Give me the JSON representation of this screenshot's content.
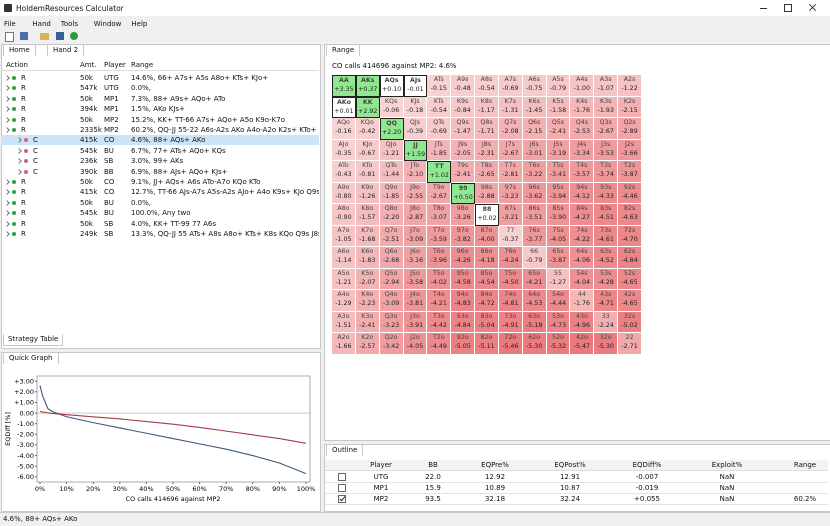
{
  "window": {
    "title": "HoldemResources Calculator"
  },
  "menu": [
    "File",
    "Hand",
    "Tools",
    "Window",
    "Help"
  ],
  "hand_panel": {
    "tabs": [
      "Home",
      "Hand 2"
    ],
    "columns": [
      "Action",
      "Amt.",
      "Player",
      "Range"
    ],
    "rows": [
      {
        "cells": [
          "R",
          "50k",
          "UTG",
          "14.6%, 66+ A7s+ A5s A8o+ KTs+ KJo+"
        ]
      },
      {
        "cells": [
          "R",
          "547k",
          "UTG",
          "0.0%,"
        ]
      },
      {
        "cells": [
          "R",
          "50k",
          "MP1",
          "7.3%, 88+ A9s+ AQo+ ATo"
        ]
      },
      {
        "cells": [
          "R",
          "394k",
          "MP1",
          "1.5%, AKo KJs+"
        ]
      },
      {
        "cells": [
          "R",
          "50k",
          "MP2",
          "15.2%, KK+ TT-66 A7s+ AQo+ A5o K9o-K7o"
        ]
      },
      {
        "cells": [
          "R",
          "2335k",
          "MP2",
          "60.2%, QQ-JJ 55-22 A6s-A2s AKo A4o-A2o K2s+ KTo+ K6o-K2o"
        ]
      },
      {
        "cells": [
          "C",
          "415k",
          "CO",
          "4.6%, 88+ AQs+ AKo"
        ],
        "child": true,
        "selected": true
      },
      {
        "cells": [
          "C",
          "545k",
          "BU",
          "6.7%, 77+ ATs+ AQo+ KQs"
        ],
        "child": true
      },
      {
        "cells": [
          "C",
          "236k",
          "SB",
          "3.0%, 99+ AKs"
        ],
        "child": true
      },
      {
        "cells": [
          "C",
          "390k",
          "BB",
          "6.9%, 88+ AJs+ AQo+ KJs+"
        ],
        "child": true
      },
      {
        "cells": [
          "R",
          "50k",
          "CO",
          "9.1%, JJ+ AQs+ A6s ATo-A7o KQo KTo"
        ]
      },
      {
        "cells": [
          "R",
          "415k",
          "CO",
          "12.7%, TT-66 AJs-A7s A5s-A2s AJo+ A4o K9s+ KJo Q9s+ QJo J9s"
        ]
      },
      {
        "cells": [
          "R",
          "50k",
          "BU",
          "0.0%,"
        ]
      },
      {
        "cells": [
          "R",
          "545k",
          "BU",
          "100.0%, Any two"
        ]
      },
      {
        "cells": [
          "R",
          "50k",
          "SB",
          "4.0%, KK+ TT-99 77 A6s"
        ]
      },
      {
        "cells": [
          "R",
          "249k",
          "SB",
          "13.3%, QQ-JJ 55 ATs+ A8s A8o+ KTs+ K8s KQo Q9s J8s J7s J9s T7s"
        ]
      }
    ],
    "bottom_tab": "Strategy Table"
  },
  "quick_graph": {
    "tab": "Quick Graph",
    "chart": {
      "type": "line",
      "xlabel": "CO calls 414696 against MP2",
      "ylabel": "EQDiff [%]",
      "x": [
        0,
        1,
        3,
        5,
        10,
        20,
        30,
        40,
        50,
        60,
        70,
        80,
        90,
        100
      ],
      "series": [
        {
          "color": "#3b5a7a",
          "values": [
            2.6,
            1.6,
            0.4,
            0.1,
            -0.35,
            -0.9,
            -1.4,
            -1.9,
            -2.4,
            -2.9,
            -3.4,
            -4.0,
            -4.7,
            -5.7
          ]
        },
        {
          "color": "#a83a45",
          "values": [
            0.15,
            0.1,
            0.02,
            -0.05,
            -0.15,
            -0.35,
            -0.55,
            -0.8,
            -1.05,
            -1.35,
            -1.7,
            -2.05,
            -2.4,
            -2.85
          ]
        }
      ],
      "xlim": [
        0,
        100
      ],
      "ylim": [
        -6.3,
        3.3
      ],
      "xticks": [
        {
          "value": 0,
          "label": "0%"
        },
        {
          "value": 10,
          "label": "10%"
        },
        {
          "value": 20,
          "label": "20%"
        },
        {
          "value": 30,
          "label": "30%"
        },
        {
          "value": 40,
          "label": "40%"
        },
        {
          "value": 50,
          "label": "50%"
        },
        {
          "value": 60,
          "label": "60%"
        },
        {
          "value": 70,
          "label": "70%"
        },
        {
          "value": 80,
          "label": "80%"
        },
        {
          "value": 90,
          "label": "90%"
        },
        {
          "value": 100,
          "label": "100%"
        }
      ],
      "yticks": [
        {
          "value": 3,
          "label": "+3.00"
        },
        {
          "value": 2,
          "label": "+2.00"
        },
        {
          "value": 1,
          "label": "+1.00"
        },
        {
          "value": 0,
          "label": "0.00"
        },
        {
          "value": -1,
          "label": "-1.00"
        },
        {
          "value": -2,
          "label": "-2.00"
        },
        {
          "value": -3,
          "label": "-3.00"
        },
        {
          "value": -4,
          "label": "-4.00"
        },
        {
          "value": -5,
          "label": "-5.00"
        },
        {
          "value": -6,
          "label": "-6.00"
        }
      ]
    }
  },
  "range_panel": {
    "tab": "Range",
    "subtitle": "CO calls 414696 against MP2: 4.6%",
    "grid": [
      [
        [
          "AA",
          "+3.35"
        ],
        [
          "AKs",
          "+0.37"
        ],
        [
          "AQs",
          "+0.10"
        ],
        [
          "AJs",
          "-0.01"
        ],
        [
          "ATs",
          "-0.15"
        ],
        [
          "A9s",
          "-0.48"
        ],
        [
          "A8s",
          "-0.54"
        ],
        [
          "A7s",
          "-0.69"
        ],
        [
          "A6s",
          "-0.75"
        ],
        [
          "A5s",
          "-0.79"
        ],
        [
          "A4s",
          "-1.00"
        ],
        [
          "A3s",
          "-1.07"
        ],
        [
          "A2s",
          "-1.22"
        ]
      ],
      [
        [
          "AKo",
          "+0.01"
        ],
        [
          "KK",
          "+2.92"
        ],
        [
          "KQs",
          "-0.06"
        ],
        [
          "KJs",
          "-0.18"
        ],
        [
          "KTs",
          "-0.54"
        ],
        [
          "K9s",
          "-0.84"
        ],
        [
          "K8s",
          "-1.17"
        ],
        [
          "K7s",
          "-1.31"
        ],
        [
          "K6s",
          "-1.45"
        ],
        [
          "K5s",
          "-1.58"
        ],
        [
          "K4s",
          "-1.76"
        ],
        [
          "K3s",
          "-1.93"
        ],
        [
          "K2s",
          "-2.15"
        ]
      ],
      [
        [
          "AQo",
          "-0.16"
        ],
        [
          "KQo",
          "-0.42"
        ],
        [
          "QQ",
          "+2.20"
        ],
        [
          "QJs",
          "-0.39"
        ],
        [
          "QTs",
          "-0.69"
        ],
        [
          "Q9s",
          "-1.47"
        ],
        [
          "Q8s",
          "-1.71"
        ],
        [
          "Q7s",
          "-2.08"
        ],
        [
          "Q6s",
          "-2.15"
        ],
        [
          "Q5s",
          "-2.41"
        ],
        [
          "Q4s",
          "-2.53"
        ],
        [
          "Q3s",
          "-2.67"
        ],
        [
          "Q2s",
          "-2.89"
        ]
      ],
      [
        [
          "AJo",
          "-0.35"
        ],
        [
          "KJo",
          "-0.67"
        ],
        [
          "QJo",
          "-1.21"
        ],
        [
          "JJ",
          "+1.59"
        ],
        [
          "JTs",
          "-1.85"
        ],
        [
          "J9s",
          "-2.05"
        ],
        [
          "J8s",
          "-2.31"
        ],
        [
          "J7s",
          "-2.67"
        ],
        [
          "J6s",
          "-3.01"
        ],
        [
          "J5s",
          "-3.19"
        ],
        [
          "J4s",
          "-3.34"
        ],
        [
          "J3s",
          "-3.53"
        ],
        [
          "J2s",
          "-3.66"
        ]
      ],
      [
        [
          "ATo",
          "-0.43"
        ],
        [
          "KTo",
          "-0.81"
        ],
        [
          "QTo",
          "-1.44"
        ],
        [
          "JTo",
          "-2.10"
        ],
        [
          "TT",
          "+1.02"
        ],
        [
          "T9s",
          "-2.41"
        ],
        [
          "T8s",
          "-2.65"
        ],
        [
          "T7s",
          "-2.81"
        ],
        [
          "T6s",
          "-3.22"
        ],
        [
          "T5s",
          "-3.41"
        ],
        [
          "T4s",
          "-3.57"
        ],
        [
          "T3s",
          "-3.74"
        ],
        [
          "T2s",
          "-3.87"
        ]
      ],
      [
        [
          "A9o",
          "-0.80"
        ],
        [
          "K9o",
          "-1.26"
        ],
        [
          "Q9o",
          "-1.85"
        ],
        [
          "J9o",
          "-2.55"
        ],
        [
          "T9o",
          "-2.67"
        ],
        [
          "99",
          "+0.50"
        ],
        [
          "98s",
          "-2.88"
        ],
        [
          "97s",
          "-3.23"
        ],
        [
          "96s",
          "-3.62"
        ],
        [
          "95s",
          "-3.94"
        ],
        [
          "94s",
          "-4.12"
        ],
        [
          "93s",
          "-4.33"
        ],
        [
          "92s",
          "-4.46"
        ]
      ],
      [
        [
          "A8o",
          "-0.90"
        ],
        [
          "K8o",
          "-1.57"
        ],
        [
          "Q8o",
          "-2.20"
        ],
        [
          "J8o",
          "-2.87"
        ],
        [
          "T8o",
          "-3.07"
        ],
        [
          "98o",
          "-3.26"
        ],
        [
          "88",
          "+0.02"
        ],
        [
          "87s",
          "-3.21"
        ],
        [
          "86s",
          "-3.51"
        ],
        [
          "85s",
          "-3.90"
        ],
        [
          "84s",
          "-4.27"
        ],
        [
          "83s",
          "-4.51"
        ],
        [
          "82s",
          "-4.63"
        ]
      ],
      [
        [
          "A7o",
          "-1.05"
        ],
        [
          "K7o",
          "-1.68"
        ],
        [
          "Q7o",
          "-2.51"
        ],
        [
          "J7o",
          "-3.09"
        ],
        [
          "T7o",
          "-3.59"
        ],
        [
          "97o",
          "-3.82"
        ],
        [
          "87o",
          "-4.00"
        ],
        [
          "77",
          "-0.37"
        ],
        [
          "76s",
          "-3.77"
        ],
        [
          "75s",
          "-4.05"
        ],
        [
          "74s",
          "-4.22"
        ],
        [
          "73s",
          "-4.61"
        ],
        [
          "72s",
          "-4.70"
        ]
      ],
      [
        [
          "A6o",
          "-1.14"
        ],
        [
          "K6o",
          "-1.83"
        ],
        [
          "Q6o",
          "-2.68"
        ],
        [
          "J6o",
          "-3.16"
        ],
        [
          "T6o",
          "-3.96"
        ],
        [
          "96o",
          "-4.26"
        ],
        [
          "86o",
          "-4.18"
        ],
        [
          "76o",
          "-4.24"
        ],
        [
          "66",
          "-0.79"
        ],
        [
          "65s",
          "-3.87"
        ],
        [
          "64s",
          "-4.06"
        ],
        [
          "63s",
          "-4.52"
        ],
        [
          "62s",
          "-4.84"
        ]
      ],
      [
        [
          "A5o",
          "-1.21"
        ],
        [
          "K5o",
          "-2.07"
        ],
        [
          "Q5o",
          "-2.94"
        ],
        [
          "J5o",
          "-3.58"
        ],
        [
          "T5o",
          "-4.02"
        ],
        [
          "95o",
          "-4.58"
        ],
        [
          "85o",
          "-4.54"
        ],
        [
          "75o",
          "-4.50"
        ],
        [
          "65o",
          "-4.21"
        ],
        [
          "55",
          "-1.27"
        ],
        [
          "54s",
          "-4.04"
        ],
        [
          "53s",
          "-4.28"
        ],
        [
          "52s",
          "-4.65"
        ]
      ],
      [
        [
          "A4o",
          "-1.29"
        ],
        [
          "K4o",
          "-2.23"
        ],
        [
          "Q4o",
          "-3.09"
        ],
        [
          "J4o",
          "-3.81"
        ],
        [
          "T4o",
          "-4.21"
        ],
        [
          "94o",
          "-4.83"
        ],
        [
          "84o",
          "-4.72"
        ],
        [
          "74o",
          "-4.81"
        ],
        [
          "64o",
          "-4.53"
        ],
        [
          "54o",
          "-4.44"
        ],
        [
          "44",
          "-1.76"
        ],
        [
          "43s",
          "-4.71"
        ],
        [
          "42s",
          "-4.65"
        ]
      ],
      [
        [
          "A3o",
          "-1.51"
        ],
        [
          "K3o",
          "-2.41"
        ],
        [
          "Q3o",
          "-3.23"
        ],
        [
          "J3o",
          "-3.91"
        ],
        [
          "T3o",
          "-4.42"
        ],
        [
          "93o",
          "-4.84"
        ],
        [
          "83o",
          "-5.04"
        ],
        [
          "73o",
          "-4.91"
        ],
        [
          "63o",
          "-5.18"
        ],
        [
          "53o",
          "-4.73"
        ],
        [
          "43o",
          "-4.96"
        ],
        [
          "33",
          "-2.24"
        ],
        [
          "32s",
          "-5.02"
        ]
      ],
      [
        [
          "A2o",
          "-1.66"
        ],
        [
          "K2o",
          "-2.57"
        ],
        [
          "Q2o",
          "-3.42"
        ],
        [
          "J2o",
          "-4.05"
        ],
        [
          "T2o",
          "-4.49"
        ],
        [
          "92o",
          "-5.05"
        ],
        [
          "82o",
          "-5.11"
        ],
        [
          "72o",
          "-5.46"
        ],
        [
          "62o",
          "-5.30"
        ],
        [
          "52o",
          "-5.32"
        ],
        [
          "42o",
          "-5.47"
        ],
        [
          "32o",
          "-5.30"
        ],
        [
          "22",
          "-2.71"
        ]
      ]
    ]
  },
  "outline": {
    "tab": "Outline",
    "columns": [
      "Player",
      "BB",
      "EQPre%",
      "EQPost%",
      "EQDiff%",
      "Exploit%",
      "Range"
    ],
    "rows": [
      {
        "checked": false,
        "cells": [
          "UTG",
          "22.0",
          "12.92",
          "12.91",
          "-0.007",
          "NaN"
        ]
      },
      {
        "checked": false,
        "cells": [
          "MP1",
          "15.9",
          "10.89",
          "10.87",
          "-0.019",
          "NaN"
        ]
      },
      {
        "checked": true,
        "cells": [
          "MP2",
          "93.5",
          "32.18",
          "32.24",
          "+0.055",
          "NaN",
          "60.2%"
        ]
      }
    ]
  },
  "status": "4.6%, 88+ AQs+ AKo"
}
